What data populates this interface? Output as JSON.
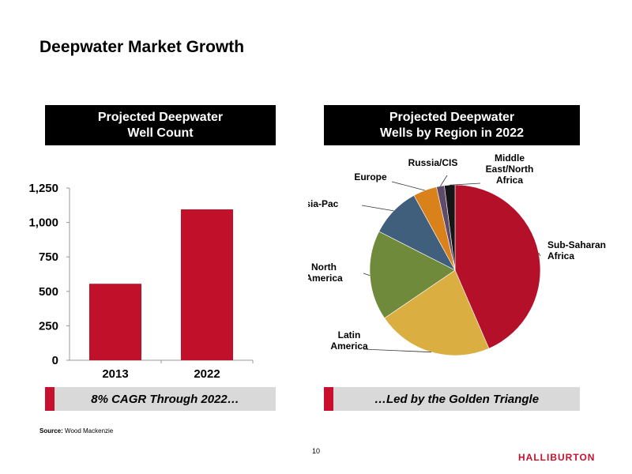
{
  "title": "Deepwater Market Growth",
  "left_panel": {
    "header_line1": "Projected Deepwater",
    "header_line2": "Well Count",
    "banner": "8% CAGR Through 2022…"
  },
  "right_panel": {
    "header_line1": "Projected Deepwater",
    "header_line2": "Wells by Region in 2022",
    "banner": "…Led by the Golden Triangle"
  },
  "source_label": "Source:",
  "source_text": "Wood Mackenzie",
  "page_number": "10",
  "logo_text": "HALLIBURTON",
  "colors": {
    "accent": "#c8102e",
    "banner_bg": "#d9d9d9"
  },
  "chart_data": [
    {
      "type": "bar",
      "categories": [
        "2013",
        "2022"
      ],
      "values": [
        555,
        1095
      ],
      "ylim": [
        0,
        1250
      ],
      "yticks": [
        0,
        250,
        500,
        750,
        1000,
        1250
      ],
      "ytick_labels": [
        "0",
        "250",
        "500",
        "750",
        "1,000",
        "1,250"
      ],
      "color": "#c0102a",
      "grid": false
    },
    {
      "type": "pie",
      "labels": [
        "Sub-Saharan Africa",
        "Latin America",
        "North America",
        "Asia-Pac",
        "Europe",
        "Russia/CIS",
        "Middle East/North Africa"
      ],
      "label_lines": [
        [
          "Sub-Saharan",
          "Africa"
        ],
        [
          "Latin",
          "America"
        ],
        [
          "North",
          "America"
        ],
        [
          "Asia-Pac"
        ],
        [
          "Europe"
        ],
        [
          "Russia/CIS"
        ],
        [
          "Middle",
          "East/North",
          "Africa"
        ]
      ],
      "values": [
        43.5,
        22,
        17,
        9.5,
        4.5,
        1.5,
        2
      ],
      "colors": [
        "#b5102a",
        "#dbae42",
        "#6e8a3a",
        "#3f5f7c",
        "#d9821c",
        "#5e4a6a",
        "#151515"
      ]
    }
  ]
}
